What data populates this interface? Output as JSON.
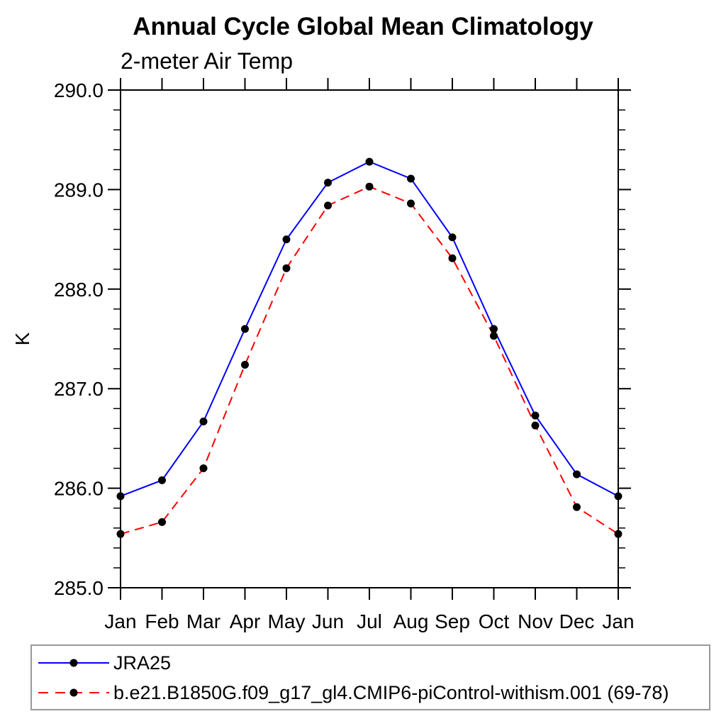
{
  "chart_data": {
    "type": "line",
    "title": "Annual Cycle Global Mean Climatology",
    "subtitle": "2-meter Air Temp",
    "ylabel": "K",
    "xlabel": "",
    "x_categories": [
      "Jan",
      "Feb",
      "Mar",
      "Apr",
      "May",
      "Jun",
      "Jul",
      "Aug",
      "Sep",
      "Oct",
      "Nov",
      "Dec",
      "Jan"
    ],
    "ylim": [
      285.0,
      290.0
    ],
    "ytick_values": [
      285,
      286,
      287,
      288,
      289,
      290
    ],
    "ytick_labels": [
      "285.0",
      "286.0",
      "287.0",
      "288.0",
      "289.0",
      "290.0"
    ],
    "minor_tick_step": 0.2,
    "grid": false,
    "legend_position": "bottom-left-box",
    "marker": {
      "shape": "circle",
      "color": "#000000"
    },
    "series": [
      {
        "name": "JRA25",
        "color": "#0000ff",
        "line_style": "solid",
        "values": [
          285.92,
          286.08,
          286.67,
          287.6,
          288.5,
          289.07,
          289.28,
          289.11,
          288.52,
          287.6,
          286.73,
          286.14,
          285.92
        ]
      },
      {
        "name": "b.e21.B1850G.f09_g17_gl4.CMIP6-piControl-withism.001 (69-78)",
        "color": "#ff0000",
        "line_style": "dashed",
        "values": [
          285.54,
          285.66,
          286.2,
          287.24,
          288.21,
          288.84,
          289.03,
          288.86,
          288.31,
          287.53,
          286.63,
          285.81,
          285.54
        ]
      }
    ]
  }
}
